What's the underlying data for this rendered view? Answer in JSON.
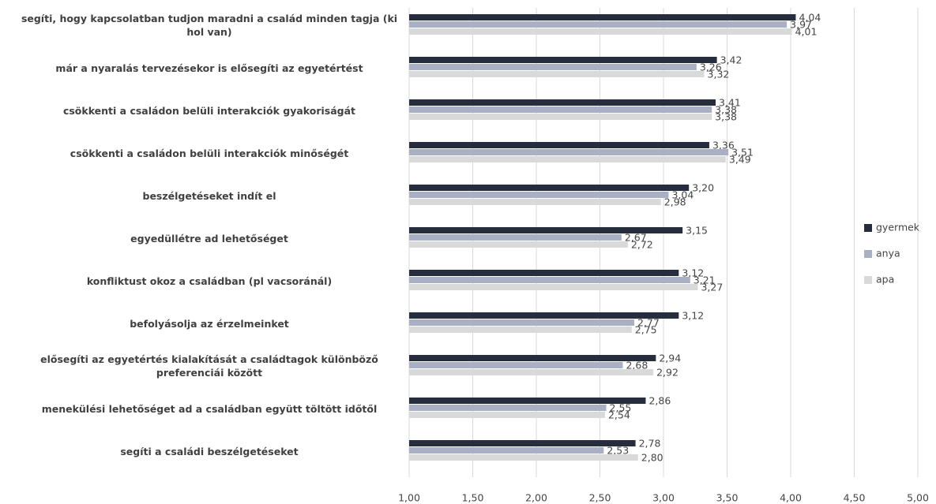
{
  "chart_data": {
    "type": "hbar",
    "categories": [
      "segíti, hogy kapcsolatban tudjon maradni a család minden tagja (ki hol van)",
      "már a nyaralás tervezésekor is elősegíti az egyetértést",
      "csökkenti a családon belüli interakciók gyakoriságát",
      "csökkenti a családon belüli interakciók minőségét",
      "beszélgetéseket indít el",
      "egyedüllétre ad lehetőséget",
      "konfliktust okoz a családban (pl vacsoránál)",
      "befolyásolja az érzelmeinket",
      "elősegíti az egyetértés kialakítását a családtagok különböző preferenciái között",
      "menekülési lehetőséget ad a családban együtt töltött időtől",
      "segíti a családi beszélgetéseket"
    ],
    "series": [
      {
        "name": "gyermek",
        "color": "#262d3d",
        "values": [
          4.04,
          3.42,
          3.41,
          3.36,
          3.2,
          3.15,
          3.12,
          3.12,
          2.94,
          2.86,
          2.78
        ],
        "value_labels": [
          "4,04",
          "3,42",
          "3,41",
          "3,36",
          "3,20",
          "3,15",
          "3,12",
          "3,12",
          "2,94",
          "2,86",
          "2,78"
        ]
      },
      {
        "name": "anya",
        "color": "#a9b0c3",
        "values": [
          3.97,
          3.26,
          3.38,
          3.51,
          3.04,
          2.67,
          3.21,
          2.77,
          2.68,
          2.55,
          2.53
        ],
        "value_labels": [
          "3,97",
          "3,26",
          "3,38",
          "3,51",
          "3,04",
          "2,67",
          "3,21",
          "2,77",
          "2,68",
          "2,55",
          "2,53"
        ]
      },
      {
        "name": "apa",
        "color": "#d9d9d9",
        "values": [
          4.01,
          3.32,
          3.38,
          3.49,
          2.98,
          2.72,
          3.27,
          2.75,
          2.92,
          2.54,
          2.8
        ],
        "value_labels": [
          "4,01",
          "3,32",
          "3,38",
          "3,49",
          "2,98",
          "2,72",
          "3,27",
          "2,75",
          "2,92",
          "2,54",
          "2,80"
        ]
      }
    ],
    "xlim": [
      1,
      5
    ],
    "xticks": [
      {
        "value": 1,
        "label": "1,00"
      },
      {
        "value": 1.5,
        "label": "1,50"
      },
      {
        "value": 2,
        "label": "2,00"
      },
      {
        "value": 2.5,
        "label": "2,50"
      },
      {
        "value": 3,
        "label": "3,00"
      },
      {
        "value": 3.5,
        "label": "3,50"
      },
      {
        "value": 4,
        "label": "4,00"
      },
      {
        "value": 4.5,
        "label": "4,50"
      },
      {
        "value": 5,
        "label": "5,00"
      }
    ],
    "grid": true,
    "legend": "right"
  }
}
